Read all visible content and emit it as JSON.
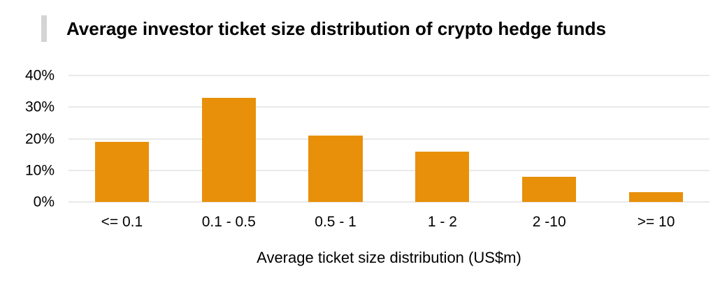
{
  "title_accent_color": "#D4D4D4",
  "chart_data": {
    "type": "bar",
    "title": "Average investor ticket size distribution of crypto hedge funds",
    "xlabel": "Average ticket size distribution (US$m)",
    "ylabel": "",
    "categories": [
      "<= 0.1",
      "0.1 - 0.5",
      "0.5 - 1",
      "1 - 2",
      "2 -10",
      ">= 10"
    ],
    "values": [
      19,
      33,
      21,
      16,
      8,
      3
    ],
    "ylim": [
      0,
      40
    ],
    "yticks": [
      0,
      10,
      20,
      30,
      40
    ],
    "ytick_labels": [
      "0%",
      "10%",
      "20%",
      "30%",
      "40%"
    ],
    "bar_color": "#E8900A",
    "gridline_color": "#E9E9E9",
    "grid": true,
    "legend_position": "none"
  }
}
